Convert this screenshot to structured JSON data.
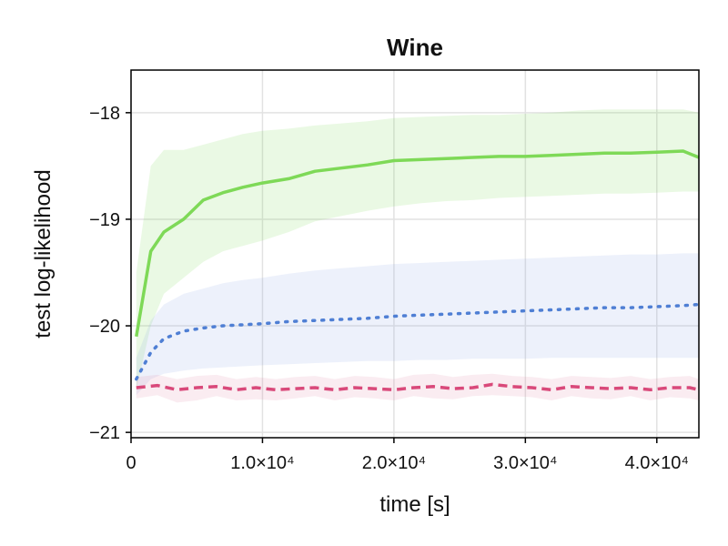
{
  "chart_data": {
    "type": "line",
    "title": "Wine",
    "xlabel": "time [s]",
    "ylabel": "test log-likelihood",
    "xlim": [
      0,
      43200
    ],
    "ylim": [
      -21.05,
      -17.6
    ],
    "grid": true,
    "x_ticks": [
      {
        "value": 0,
        "label": "0"
      },
      {
        "value": 10000,
        "label": "1.0×10⁴"
      },
      {
        "value": 20000,
        "label": "2.0×10⁴"
      },
      {
        "value": 30000,
        "label": "3.0×10⁴"
      },
      {
        "value": 40000,
        "label": "4.0×10⁴"
      }
    ],
    "y_ticks": [
      {
        "value": -18,
        "label": "−18"
      },
      {
        "value": -19,
        "label": "−19"
      },
      {
        "value": -20,
        "label": "−20"
      },
      {
        "value": -21,
        "label": "−21"
      }
    ],
    "series": [
      {
        "color": "#7ed957",
        "band_color": "#7ed957",
        "dash": "solid",
        "x": [
          400,
          1500,
          2500,
          4000,
          5500,
          7000,
          8500,
          10000,
          12000,
          14000,
          16000,
          18000,
          20000,
          22000,
          24000,
          26000,
          28000,
          30000,
          32000,
          34000,
          36000,
          38000,
          40000,
          42000,
          43200
        ],
        "y": [
          -20.1,
          -19.3,
          -19.12,
          -19.0,
          -18.82,
          -18.75,
          -18.7,
          -18.66,
          -18.62,
          -18.55,
          -18.52,
          -18.49,
          -18.45,
          -18.44,
          -18.43,
          -18.42,
          -18.41,
          -18.41,
          -18.4,
          -18.39,
          -18.38,
          -18.38,
          -18.37,
          -18.36,
          -18.42
        ],
        "lower": [
          -20.6,
          -20.0,
          -19.7,
          -19.55,
          -19.4,
          -19.3,
          -19.25,
          -19.2,
          -19.12,
          -19.02,
          -18.97,
          -18.92,
          -18.88,
          -18.85,
          -18.83,
          -18.82,
          -18.8,
          -18.79,
          -18.78,
          -18.77,
          -18.76,
          -18.76,
          -18.75,
          -18.74,
          -18.74
        ],
        "upper": [
          -19.5,
          -18.5,
          -18.35,
          -18.35,
          -18.3,
          -18.25,
          -18.2,
          -18.17,
          -18.15,
          -18.12,
          -18.1,
          -18.08,
          -18.05,
          -18.04,
          -18.03,
          -18.02,
          -18.02,
          -18.01,
          -18.0,
          -17.98,
          -17.97,
          -17.97,
          -17.97,
          -17.97,
          -18.0
        ]
      },
      {
        "color": "#4f7fd4",
        "band_color": "#8fa9e6",
        "dash": "dotted",
        "x": [
          400,
          1500,
          2500,
          4000,
          5500,
          7000,
          8500,
          10000,
          12000,
          14000,
          16000,
          18000,
          20000,
          22000,
          24000,
          26000,
          28000,
          30000,
          32000,
          34000,
          36000,
          38000,
          40000,
          42000,
          43200
        ],
        "y": [
          -20.5,
          -20.25,
          -20.12,
          -20.05,
          -20.02,
          -20.0,
          -19.99,
          -19.98,
          -19.96,
          -19.95,
          -19.94,
          -19.93,
          -19.91,
          -19.9,
          -19.89,
          -19.88,
          -19.87,
          -19.86,
          -19.85,
          -19.84,
          -19.83,
          -19.83,
          -19.82,
          -19.81,
          -19.8
        ],
        "lower": [
          -20.65,
          -20.5,
          -20.45,
          -20.42,
          -20.4,
          -20.39,
          -20.38,
          -20.37,
          -20.36,
          -20.35,
          -20.34,
          -20.33,
          -20.33,
          -20.32,
          -20.32,
          -20.31,
          -20.31,
          -20.31,
          -20.3,
          -20.3,
          -20.3,
          -20.3,
          -20.3,
          -20.3,
          -20.3
        ],
        "upper": [
          -20.3,
          -19.95,
          -19.8,
          -19.7,
          -19.65,
          -19.6,
          -19.57,
          -19.55,
          -19.51,
          -19.48,
          -19.46,
          -19.44,
          -19.42,
          -19.41,
          -19.4,
          -19.39,
          -19.38,
          -19.37,
          -19.36,
          -19.35,
          -19.34,
          -19.33,
          -19.33,
          -19.32,
          -19.32
        ]
      },
      {
        "color": "#d9497a",
        "band_color": "#e38aa9",
        "dash": "dashed",
        "x": [
          400,
          2000,
          3500,
          5000,
          6500,
          8000,
          9500,
          11000,
          12500,
          14000,
          15500,
          17000,
          18500,
          20000,
          21500,
          23000,
          24500,
          26000,
          27500,
          29000,
          30500,
          32000,
          33500,
          35000,
          36500,
          38000,
          39500,
          41000,
          42500,
          43200
        ],
        "y": [
          -20.58,
          -20.56,
          -20.6,
          -20.58,
          -20.57,
          -20.6,
          -20.58,
          -20.6,
          -20.59,
          -20.58,
          -20.6,
          -20.58,
          -20.59,
          -20.6,
          -20.58,
          -20.57,
          -20.59,
          -20.58,
          -20.55,
          -20.57,
          -20.58,
          -20.6,
          -20.57,
          -20.58,
          -20.59,
          -20.58,
          -20.6,
          -20.58,
          -20.58,
          -20.6
        ],
        "lower": [
          -20.68,
          -20.65,
          -20.72,
          -20.7,
          -20.66,
          -20.7,
          -20.69,
          -20.7,
          -20.68,
          -20.66,
          -20.7,
          -20.67,
          -20.68,
          -20.7,
          -20.66,
          -20.68,
          -20.69,
          -20.66,
          -20.65,
          -20.66,
          -20.67,
          -20.7,
          -20.66,
          -20.68,
          -20.69,
          -20.66,
          -20.7,
          -20.67,
          -20.68,
          -20.7
        ],
        "upper": [
          -20.48,
          -20.46,
          -20.5,
          -20.47,
          -20.46,
          -20.5,
          -20.48,
          -20.5,
          -20.48,
          -20.47,
          -20.5,
          -20.47,
          -20.48,
          -20.5,
          -20.46,
          -20.45,
          -20.48,
          -20.46,
          -20.45,
          -20.47,
          -20.48,
          -20.5,
          -20.47,
          -20.48,
          -20.49,
          -20.47,
          -20.5,
          -20.48,
          -20.47,
          -20.5
        ]
      }
    ]
  }
}
